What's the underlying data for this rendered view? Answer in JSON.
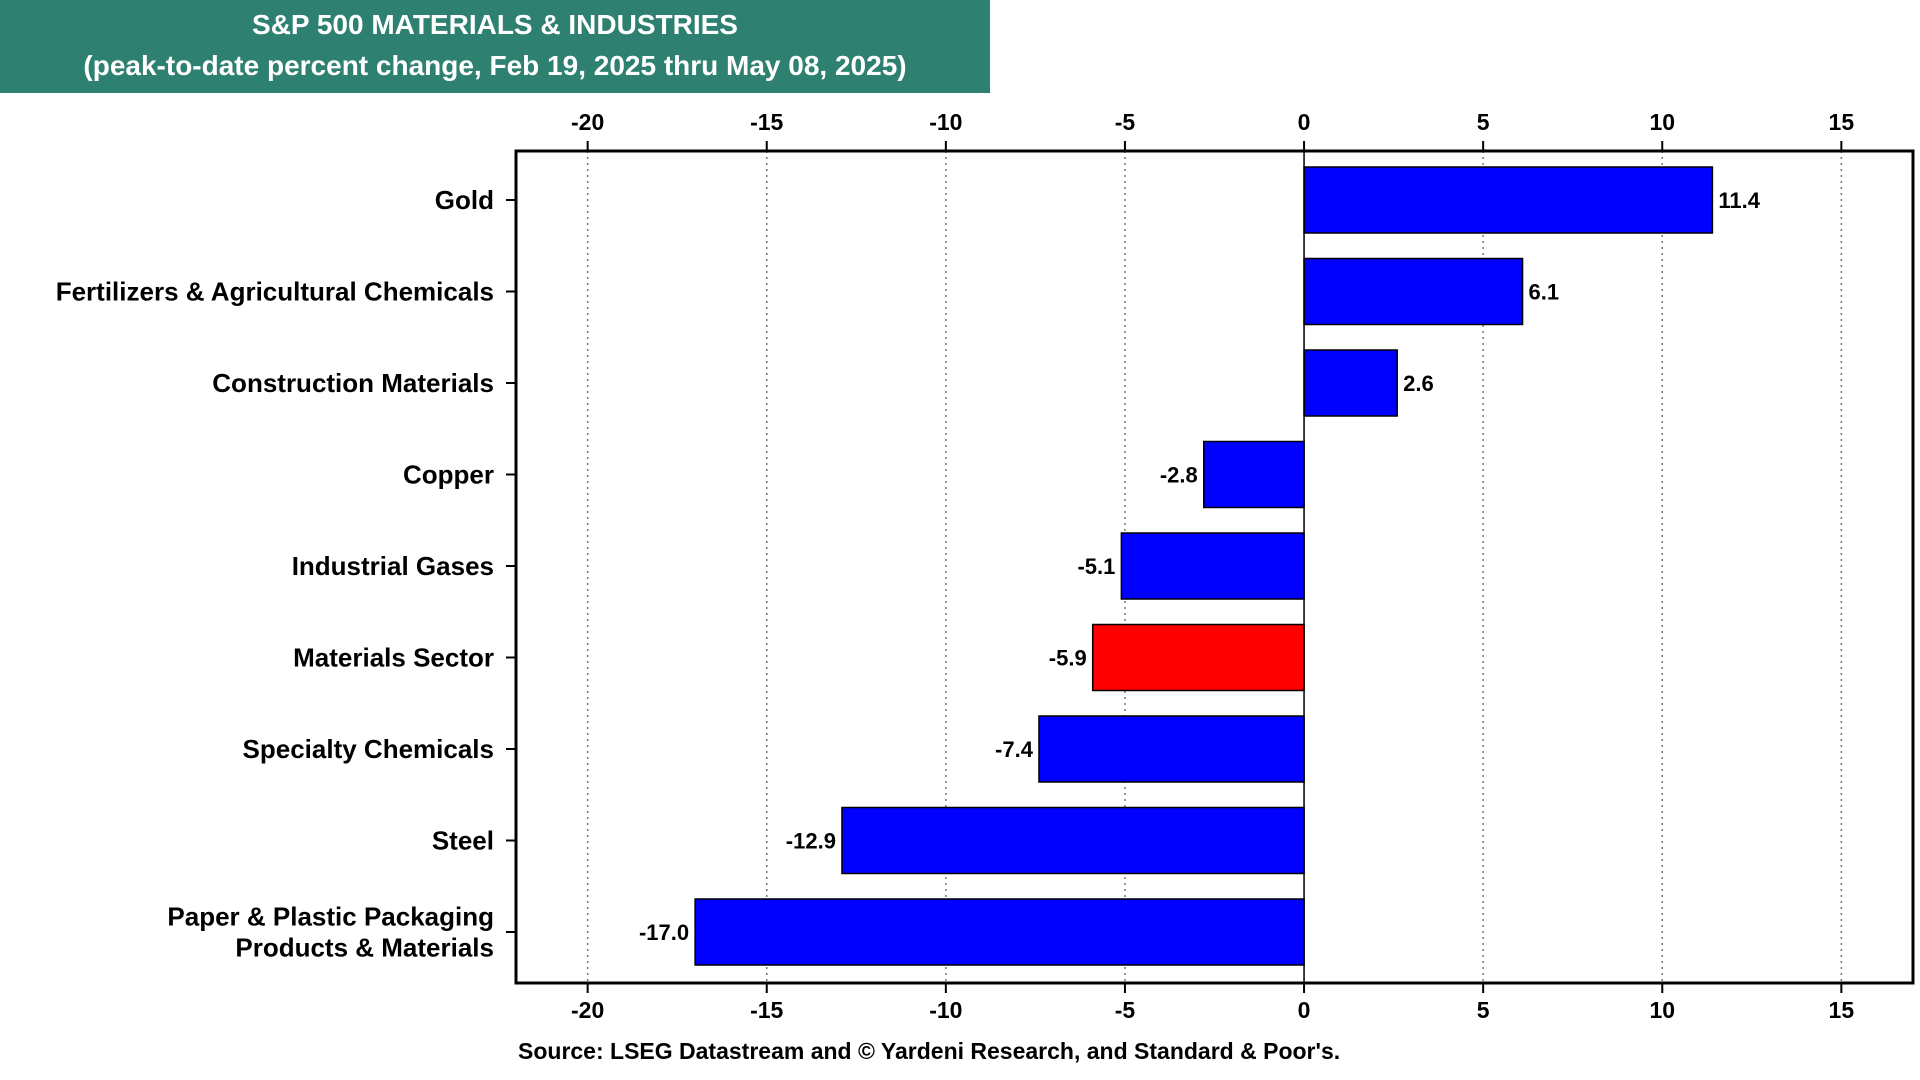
{
  "header": {
    "title": "S&P 500 MATERIALS & INDUSTRIES",
    "subtitle": "(peak-to-date percent change, Feb 19, 2025 thru May 08, 2025)",
    "background_color": "#2e8070"
  },
  "footer": {
    "source": "Source: LSEG Datastream and © Yardeni Research, and Standard & Poor's."
  },
  "chart_data": {
    "type": "bar",
    "orientation": "horizontal",
    "title": "S&P 500 MATERIALS & INDUSTRIES",
    "subtitle": "(peak-to-date percent change, Feb 19, 2025 thru May 08, 2025)",
    "categories": [
      [
        "Gold"
      ],
      [
        "Fertilizers & Agricultural Chemicals"
      ],
      [
        "Construction Materials"
      ],
      [
        "Copper"
      ],
      [
        "Industrial Gases"
      ],
      [
        "Materials Sector"
      ],
      [
        "Specialty Chemicals"
      ],
      [
        "Steel"
      ],
      [
        "Paper & Plastic Packaging",
        "Products & Materials"
      ]
    ],
    "values": [
      11.4,
      6.1,
      2.6,
      -2.8,
      -5.1,
      -5.9,
      -7.4,
      -12.9,
      -17.0
    ],
    "value_labels": [
      "11.4",
      "6.1",
      "2.6",
      "-2.8",
      "-5.1",
      "-5.9",
      "-7.4",
      "-12.9",
      "-17.0"
    ],
    "colors": [
      "#0000ff",
      "#0000ff",
      "#0000ff",
      "#0000ff",
      "#0000ff",
      "#ff0000",
      "#0000ff",
      "#0000ff",
      "#0000ff"
    ],
    "xlim": [
      -22,
      17
    ],
    "xticks": [
      -20,
      -15,
      -10,
      -5,
      0,
      5,
      10,
      15
    ],
    "xtick_labels": [
      "-20",
      "-15",
      "-10",
      "-5",
      "0",
      "5",
      "10",
      "15"
    ],
    "grid": "vertical dotted",
    "axis_labels_position": "top and bottom",
    "xlabel": "",
    "ylabel": ""
  }
}
